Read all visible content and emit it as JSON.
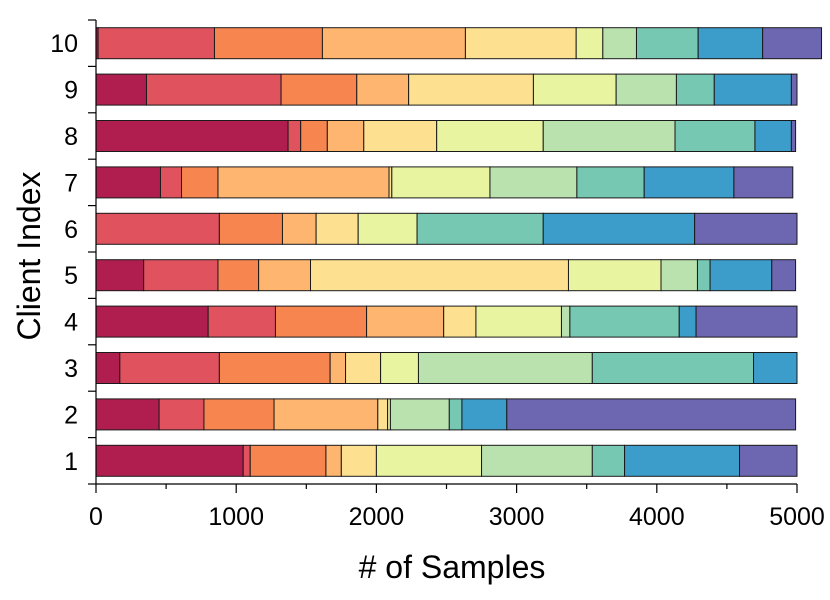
{
  "chart_data": {
    "type": "bar",
    "orientation": "horizontal",
    "stacked": true,
    "xlabel": "# of Samples",
    "ylabel": "Client Index",
    "xlim": [
      0,
      5000
    ],
    "xticks": [
      0,
      1000,
      2000,
      3000,
      4000,
      5000
    ],
    "xtick_labels": [
      "0",
      "1000",
      "2000",
      "3000",
      "4000",
      "5000"
    ],
    "categories": [
      "1",
      "2",
      "3",
      "4",
      "5",
      "6",
      "7",
      "8",
      "9",
      "10"
    ],
    "colors": [
      "#b01e4f",
      "#e0525e",
      "#f6854f",
      "#fdb56f",
      "#fde191",
      "#e9f4a0",
      "#b9e2af",
      "#77c8b3",
      "#3c9dcb",
      "#6d66b0"
    ],
    "series": [
      {
        "values": [
          1050,
          450,
          170,
          800,
          340,
          0,
          460,
          1370,
          360,
          15
        ]
      },
      {
        "values": [
          50,
          320,
          710,
          480,
          530,
          880,
          150,
          90,
          960,
          830
        ]
      },
      {
        "values": [
          540,
          500,
          790,
          650,
          290,
          450,
          260,
          190,
          540,
          770
        ]
      },
      {
        "values": [
          110,
          740,
          110,
          550,
          370,
          240,
          1220,
          260,
          370,
          1020
        ]
      },
      {
        "values": [
          250,
          70,
          250,
          230,
          1840,
          300,
          20,
          520,
          890,
          790
        ]
      },
      {
        "values": [
          750,
          20,
          270,
          610,
          660,
          420,
          700,
          760,
          590,
          190
        ]
      },
      {
        "values": [
          790,
          420,
          1240,
          60,
          260,
          0,
          620,
          940,
          430,
          240
        ]
      },
      {
        "values": [
          230,
          90,
          1150,
          780,
          90,
          900,
          480,
          570,
          270,
          440
        ]
      },
      {
        "values": [
          820,
          320,
          310,
          120,
          440,
          1080,
          640,
          260,
          550,
          460
        ]
      },
      {
        "values": [
          410,
          2060,
          0,
          720,
          170,
          730,
          420,
          30,
          40,
          420
        ]
      }
    ]
  }
}
